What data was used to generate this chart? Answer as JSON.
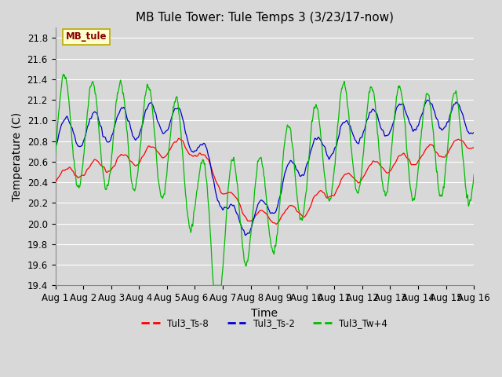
{
  "title": "MB Tule Tower: Tule Temps 3 (3/23/17-now)",
  "xlabel": "Time",
  "ylabel": "Temperature (C)",
  "ylim": [
    19.4,
    21.9
  ],
  "yticks": [
    19.4,
    19.6,
    19.8,
    20.0,
    20.2,
    20.4,
    20.6,
    20.8,
    21.0,
    21.2,
    21.4,
    21.6,
    21.8
  ],
  "xtick_labels": [
    "Aug 1",
    "Aug 2",
    "Aug 3",
    "Aug 4",
    "Aug 5",
    "Aug 6",
    "Aug 7",
    "Aug 8",
    "Aug 9",
    "Aug 10",
    "Aug 11",
    "Aug 12",
    "Aug 13",
    "Aug 14",
    "Aug 15",
    "Aug 16"
  ],
  "bg_color": "#d8d8d8",
  "plot_bg_color": "#d8d8d8",
  "grid_color": "#ffffff",
  "color_red": "#ff0000",
  "color_blue": "#0000cc",
  "color_green": "#00bb00",
  "legend_box_facecolor": "#ffffcc",
  "legend_box_edgecolor": "#bbaa00",
  "legend_text_color": "#880000",
  "title_fontsize": 11,
  "label_fontsize": 10,
  "tick_fontsize": 8.5
}
